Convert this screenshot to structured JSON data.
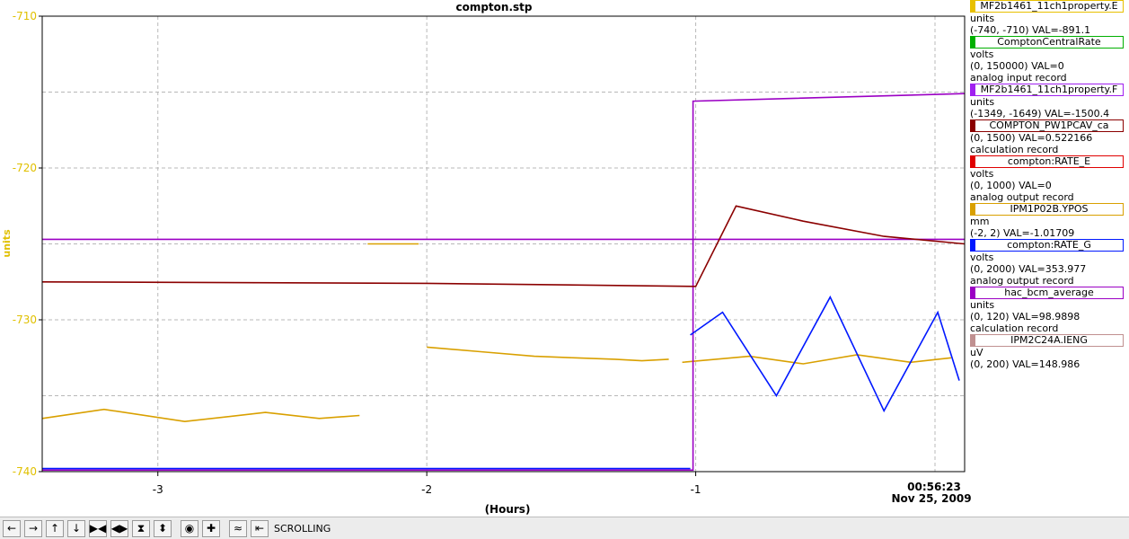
{
  "chart_data": {
    "type": "line",
    "title": "compton.stp",
    "xlabel": "(Hours)",
    "ylabel": "units",
    "xlim": [
      -3.43,
      0.0
    ],
    "ylim": [
      -740,
      -710
    ],
    "x_ticks": [
      -3,
      -2,
      -1
    ],
    "y_ticks": [
      -710,
      -720,
      -730,
      -740
    ],
    "time_label": "00:56:23",
    "date_label": "Nov 25, 2009",
    "axis_color": "#e0c000",
    "grid": true,
    "series": [
      {
        "name": "MF2b1461_11ch1property.E",
        "color": "#d9a000",
        "segments": [
          {
            "x": [
              -3.43,
              -3.2,
              -2.9,
              -2.6,
              -2.4,
              -2.25
            ],
            "y": [
              -736.5,
              -735.9,
              -736.7,
              -736.1,
              -736.5,
              -736.3
            ]
          },
          {
            "x": [
              -2.22,
              -2.03
            ],
            "y": [
              -725,
              -725
            ]
          },
          {
            "x": [
              -2.0,
              -1.8,
              -1.6,
              -1.45,
              -1.3,
              -1.2,
              -1.1
            ],
            "y": [
              -731.8,
              -732.1,
              -732.4,
              -732.5,
              -732.6,
              -732.7,
              -732.6
            ]
          },
          {
            "x": [
              -1.05,
              -0.8,
              -0.6,
              -0.4,
              -0.2,
              -0.05
            ],
            "y": [
              -732.8,
              -732.4,
              -732.9,
              -732.3,
              -732.8,
              -732.5
            ]
          }
        ]
      },
      {
        "name": "MF2b1461_11ch1property.F",
        "color": "#9b00c4",
        "segments": [
          {
            "x": [
              -3.43,
              -1.01,
              -1.01,
              -0.0
            ],
            "y": [
              -739.9,
              -739.9,
              -715.6,
              -715.1
            ]
          },
          {
            "x": [
              -3.43,
              -0.0
            ],
            "y": [
              -724.7,
              -724.7
            ]
          }
        ]
      },
      {
        "name": "COMPTON_PW1PCAV_ca",
        "color": "#8b0000",
        "segments": [
          {
            "x": [
              -3.43,
              -2.0,
              -1.0,
              -0.85,
              -0.6,
              -0.3,
              -0.0
            ],
            "y": [
              -727.5,
              -727.6,
              -727.8,
              -722.5,
              -723.5,
              -724.5,
              -725.0
            ]
          }
        ]
      },
      {
        "name": "compton:RATE_G",
        "color": "#0018ff",
        "segments": [
          {
            "x": [
              -3.43,
              -1.02
            ],
            "y": [
              -739.8,
              -739.8
            ]
          },
          {
            "x": [
              -1.02,
              -0.9,
              -0.7,
              -0.5,
              -0.3,
              -0.1,
              -0.02
            ],
            "y": [
              -731,
              -729.5,
              -735,
              -728.5,
              -736,
              -729.5,
              -734
            ]
          }
        ]
      }
    ]
  },
  "legend": [
    {
      "label": "MF2b1461_11ch1property.E",
      "color": "#e8c000",
      "lines": [
        "units",
        "(-740, -710) VAL=-891.1"
      ]
    },
    {
      "label": "ComptonCentralRate",
      "color": "#00b000",
      "lines": [
        "volts",
        "(0, 150000) VAL=0",
        "analog input record"
      ]
    },
    {
      "label": "MF2b1461_11ch1property.F",
      "color": "#a020f0",
      "lines": [
        "units",
        "(-1349, -1649) VAL=-1500.4"
      ]
    },
    {
      "label": "COMPTON_PW1PCAV_ca",
      "color": "#8b0000",
      "lines": [
        "(0, 1500) VAL=0.522166",
        "calculation record"
      ]
    },
    {
      "label": "compton:RATE_E",
      "color": "#e00000",
      "lines": [
        "volts",
        "(0, 1000) VAL=0",
        "analog output record"
      ]
    },
    {
      "label": "IPM1P02B.YPOS",
      "color": "#d9a000",
      "lines": [
        "mm",
        "(-2, 2) VAL=-1.01709"
      ]
    },
    {
      "label": "compton:RATE_G",
      "color": "#0018ff",
      "lines": [
        "volts",
        "(0, 2000) VAL=353.977",
        "analog output record"
      ]
    },
    {
      "label": "hac_bcm_average",
      "color": "#9b00c4",
      "lines": [
        "units",
        "(0, 120) VAL=98.9898",
        "calculation record"
      ]
    },
    {
      "label": "IPM2C24A.IENG",
      "color": "#c09090",
      "lines": [
        "uV",
        "(0, 200) VAL=148.986"
      ]
    }
  ],
  "toolbar": {
    "buttons": [
      {
        "icon": "arrow-left-icon",
        "glyph": "←"
      },
      {
        "icon": "arrow-right-icon",
        "glyph": "→"
      },
      {
        "icon": "arrow-up-icon",
        "glyph": "↑"
      },
      {
        "icon": "arrow-down-icon",
        "glyph": "↓"
      },
      {
        "icon": "expand-horizontal-icon",
        "glyph": "▶◀"
      },
      {
        "icon": "compress-horizontal-icon",
        "glyph": "◀▶"
      },
      {
        "icon": "expand-vertical-icon",
        "glyph": "⧗"
      },
      {
        "icon": "compress-vertical-icon",
        "glyph": "⬍"
      },
      {
        "icon": "record-icon",
        "glyph": "◉"
      },
      {
        "icon": "add-icon",
        "glyph": "✚"
      },
      {
        "icon": "autoscale-icon",
        "glyph": "≈"
      },
      {
        "icon": "scroll-end-icon",
        "glyph": "⇤"
      }
    ],
    "status": "SCROLLING"
  }
}
